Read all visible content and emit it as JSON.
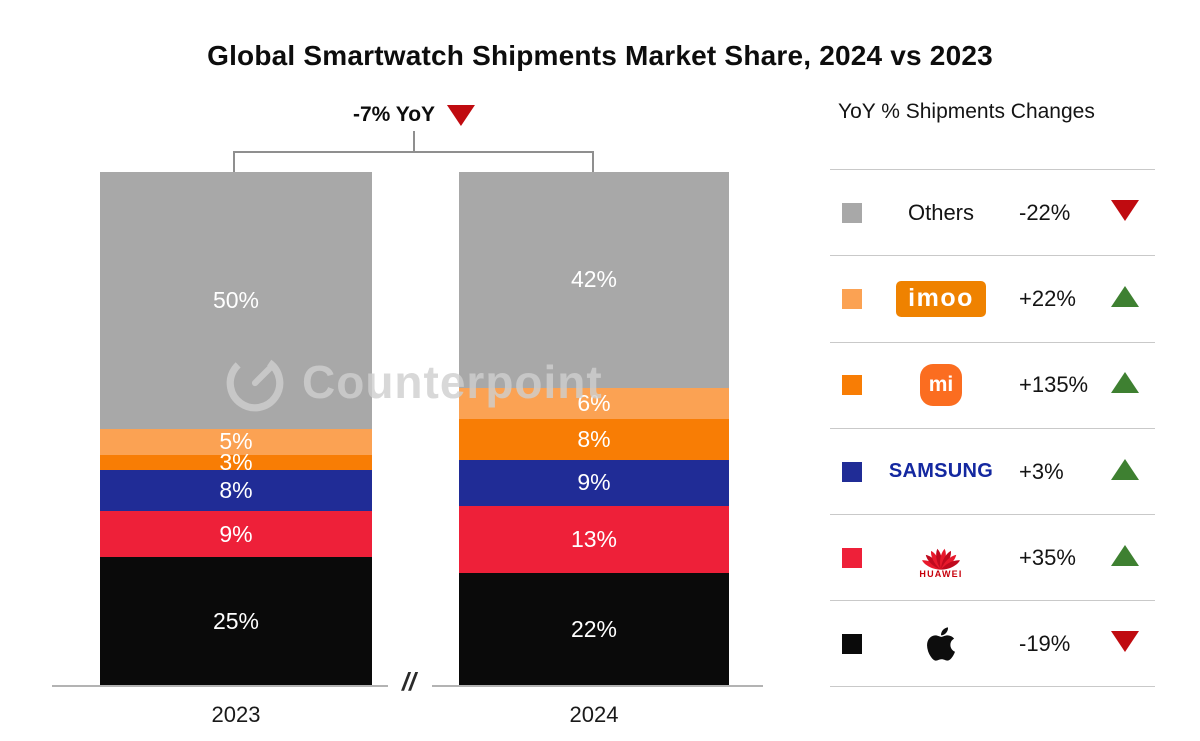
{
  "title": "Global Smartwatch Shipments Market Share, 2024 vs 2023",
  "annotation": {
    "label": "-7% YoY",
    "direction": "down"
  },
  "watermark": {
    "text": "Counterpoint"
  },
  "axis": {
    "break_mark": "//"
  },
  "legend": {
    "header": "YoY % Shipments Changes"
  },
  "colors": {
    "up_green": "#3e8031",
    "down_red": "#c00b10",
    "bracket_gray": "#8f8f8f",
    "imoo_badge_orange": "#ef8200",
    "mi_badge_orange": "#fb6d20",
    "samsung_blue": "#1428a0",
    "huawei_red": "#c7000b",
    "bar_label_white": "#ffffff"
  },
  "chart_data": {
    "type": "bar",
    "stacked": true,
    "title": "Global Smartwatch Shipments Market Share, 2024 vs 2023",
    "categories": [
      "2023",
      "2024"
    ],
    "unit": "%",
    "ylim": [
      0,
      100
    ],
    "grid": false,
    "legend_position": "right",
    "total_yoy_change": "-7% YoY",
    "stack_order_top_to_bottom": [
      "Others",
      "imoo",
      "Xiaomi",
      "Samsung",
      "Huawei",
      "Apple"
    ],
    "series": [
      {
        "name": "Others",
        "color": "#a8a8a8",
        "values": [
          50,
          42
        ],
        "labels": [
          "50%",
          "42%"
        ],
        "yoy_change": "-22%",
        "yoy_direction": "down",
        "display": {
          "type": "text",
          "text": "Others"
        }
      },
      {
        "name": "imoo",
        "color": "#fba253",
        "values": [
          5,
          6
        ],
        "labels": [
          "5%",
          "6%"
        ],
        "yoy_change": "+22%",
        "yoy_direction": "up",
        "display": {
          "type": "imoo-badge",
          "text": "imoo"
        }
      },
      {
        "name": "Xiaomi",
        "color": "#f87d05",
        "values": [
          3,
          8
        ],
        "labels": [
          "3%",
          "8%"
        ],
        "yoy_change": "+135%",
        "yoy_direction": "up",
        "display": {
          "type": "mi-badge",
          "text": "mi"
        }
      },
      {
        "name": "Samsung",
        "color": "#202c96",
        "values": [
          8,
          9
        ],
        "labels": [
          "8%",
          "9%"
        ],
        "yoy_change": "+3%",
        "yoy_direction": "up",
        "display": {
          "type": "samsung-text",
          "text": "SAMSUNG"
        }
      },
      {
        "name": "Huawei",
        "color": "#ee2039",
        "values": [
          9,
          13
        ],
        "labels": [
          "9%",
          "13%"
        ],
        "yoy_change": "+35%",
        "yoy_direction": "up",
        "display": {
          "type": "huawei-logo",
          "text": "HUAWEI"
        }
      },
      {
        "name": "Apple",
        "color": "#0a0a0a",
        "values": [
          25,
          22
        ],
        "labels": [
          "25%",
          "22%"
        ],
        "yoy_change": "-19%",
        "yoy_direction": "down",
        "display": {
          "type": "apple-logo",
          "text": ""
        }
      }
    ]
  }
}
